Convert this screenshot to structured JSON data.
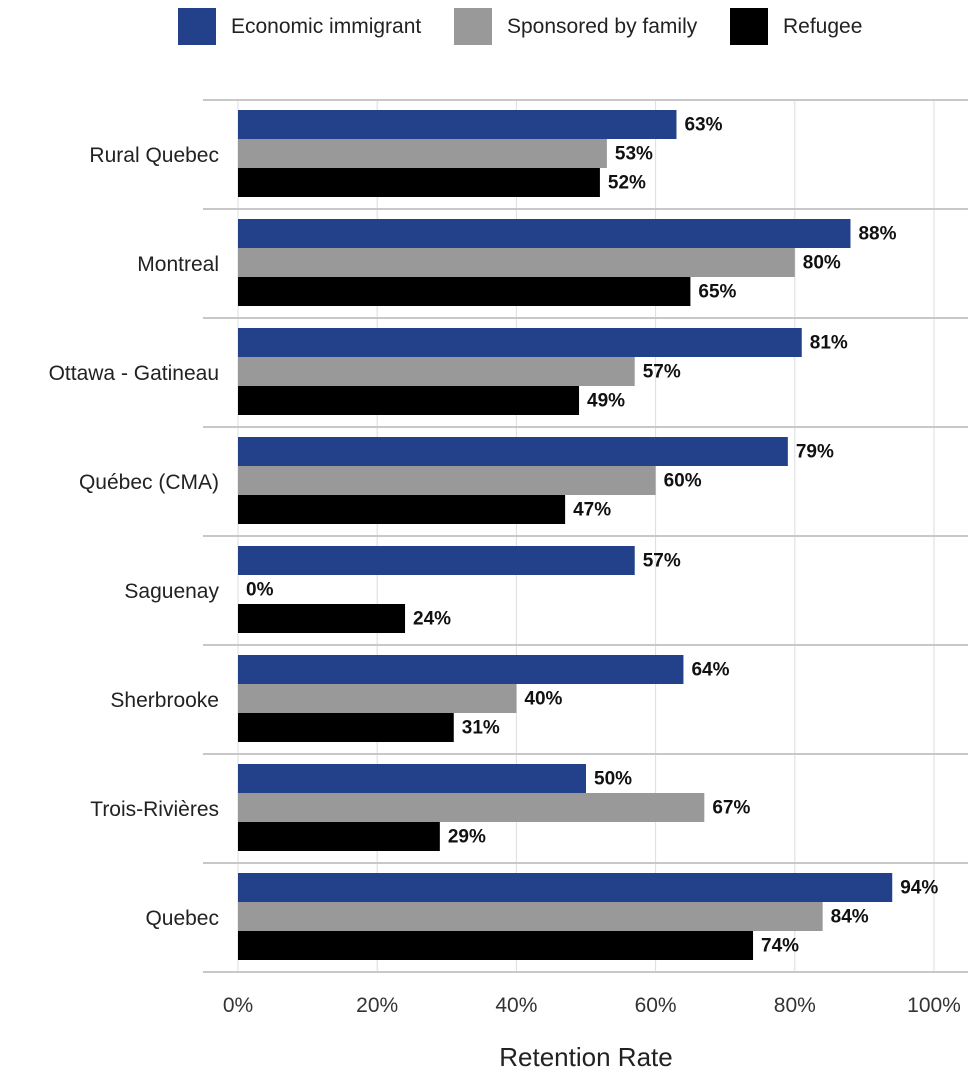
{
  "chart_data": {
    "type": "bar",
    "orientation": "horizontal",
    "title": "",
    "xlabel": "Retention Rate",
    "ylabel": "",
    "xlim": [
      0,
      1
    ],
    "x_ticks": [
      0,
      0.2,
      0.4,
      0.6,
      0.8,
      1.0
    ],
    "x_tick_labels": [
      "0%",
      "20%",
      "40%",
      "60%",
      "80%",
      "100%"
    ],
    "grid": true,
    "legend_position": "top",
    "categories": [
      "Rural Quebec",
      "Montreal",
      "Ottawa - Gatineau",
      "Québec (CMA)",
      "Saguenay",
      "Sherbrooke",
      "Trois-Rivières",
      "Quebec"
    ],
    "series": [
      {
        "name": "Economic immigrant",
        "color": "#22418a",
        "values": [
          0.63,
          0.88,
          0.81,
          0.79,
          0.57,
          0.64,
          0.5,
          0.94
        ],
        "labels": [
          "63%",
          "88%",
          "81%",
          "79%",
          "57%",
          "64%",
          "50%",
          "94%"
        ]
      },
      {
        "name": "Sponsored by family",
        "color": "#999999",
        "values": [
          0.53,
          0.8,
          0.57,
          0.6,
          0.0,
          0.4,
          0.67,
          0.84
        ],
        "labels": [
          "53%",
          "80%",
          "57%",
          "60%",
          "0%",
          "40%",
          "67%",
          "84%"
        ]
      },
      {
        "name": "Refugee",
        "color": "#000000",
        "values": [
          0.52,
          0.65,
          0.49,
          0.47,
          0.24,
          0.31,
          0.29,
          0.74
        ],
        "labels": [
          "52%",
          "65%",
          "49%",
          "47%",
          "24%",
          "31%",
          "29%",
          "74%"
        ]
      }
    ]
  }
}
